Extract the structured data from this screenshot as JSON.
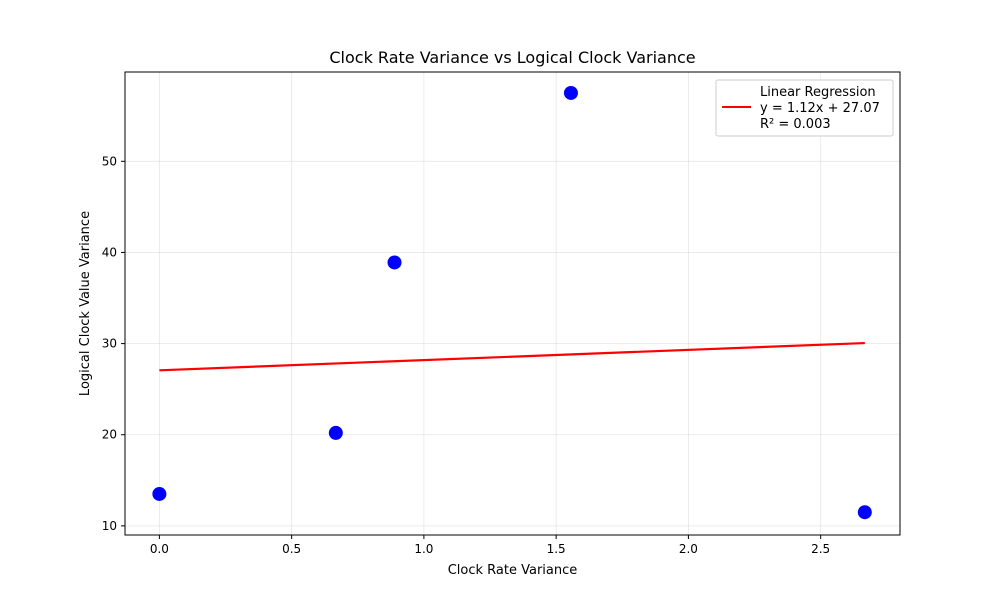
{
  "chart_data": {
    "type": "scatter",
    "title": "Clock Rate Variance vs Logical Clock Variance",
    "xlabel": "Clock Rate Variance",
    "ylabel": "Logical Clock Value Variance",
    "xlim": [
      -0.13,
      2.8
    ],
    "ylim": [
      9.0,
      59.8
    ],
    "xticks": [
      0.0,
      0.5,
      1.0,
      1.5,
      2.0,
      2.5
    ],
    "xtick_labels": [
      "0.0",
      "0.5",
      "1.0",
      "1.5",
      "2.0",
      "2.5"
    ],
    "yticks": [
      10,
      20,
      30,
      40,
      50
    ],
    "ytick_labels": [
      "10",
      "20",
      "30",
      "40",
      "50"
    ],
    "grid": true,
    "series": [
      {
        "kind": "scatter",
        "color": "#0000ff",
        "points": [
          {
            "x": 0.0,
            "y": 13.5
          },
          {
            "x": 0.667,
            "y": 20.2
          },
          {
            "x": 0.889,
            "y": 38.9
          },
          {
            "x": 1.556,
            "y": 57.5
          },
          {
            "x": 2.667,
            "y": 11.5
          }
        ]
      },
      {
        "kind": "line",
        "name": "Linear Regression",
        "color": "#ff0000",
        "points": [
          {
            "x": 0.0,
            "y": 27.07
          },
          {
            "x": 2.667,
            "y": 30.06
          }
        ]
      }
    ],
    "legend": {
      "position": "top-right",
      "lines": [
        "Linear Regression",
        "y = 1.12x + 27.07",
        "R² = 0.003"
      ]
    }
  }
}
